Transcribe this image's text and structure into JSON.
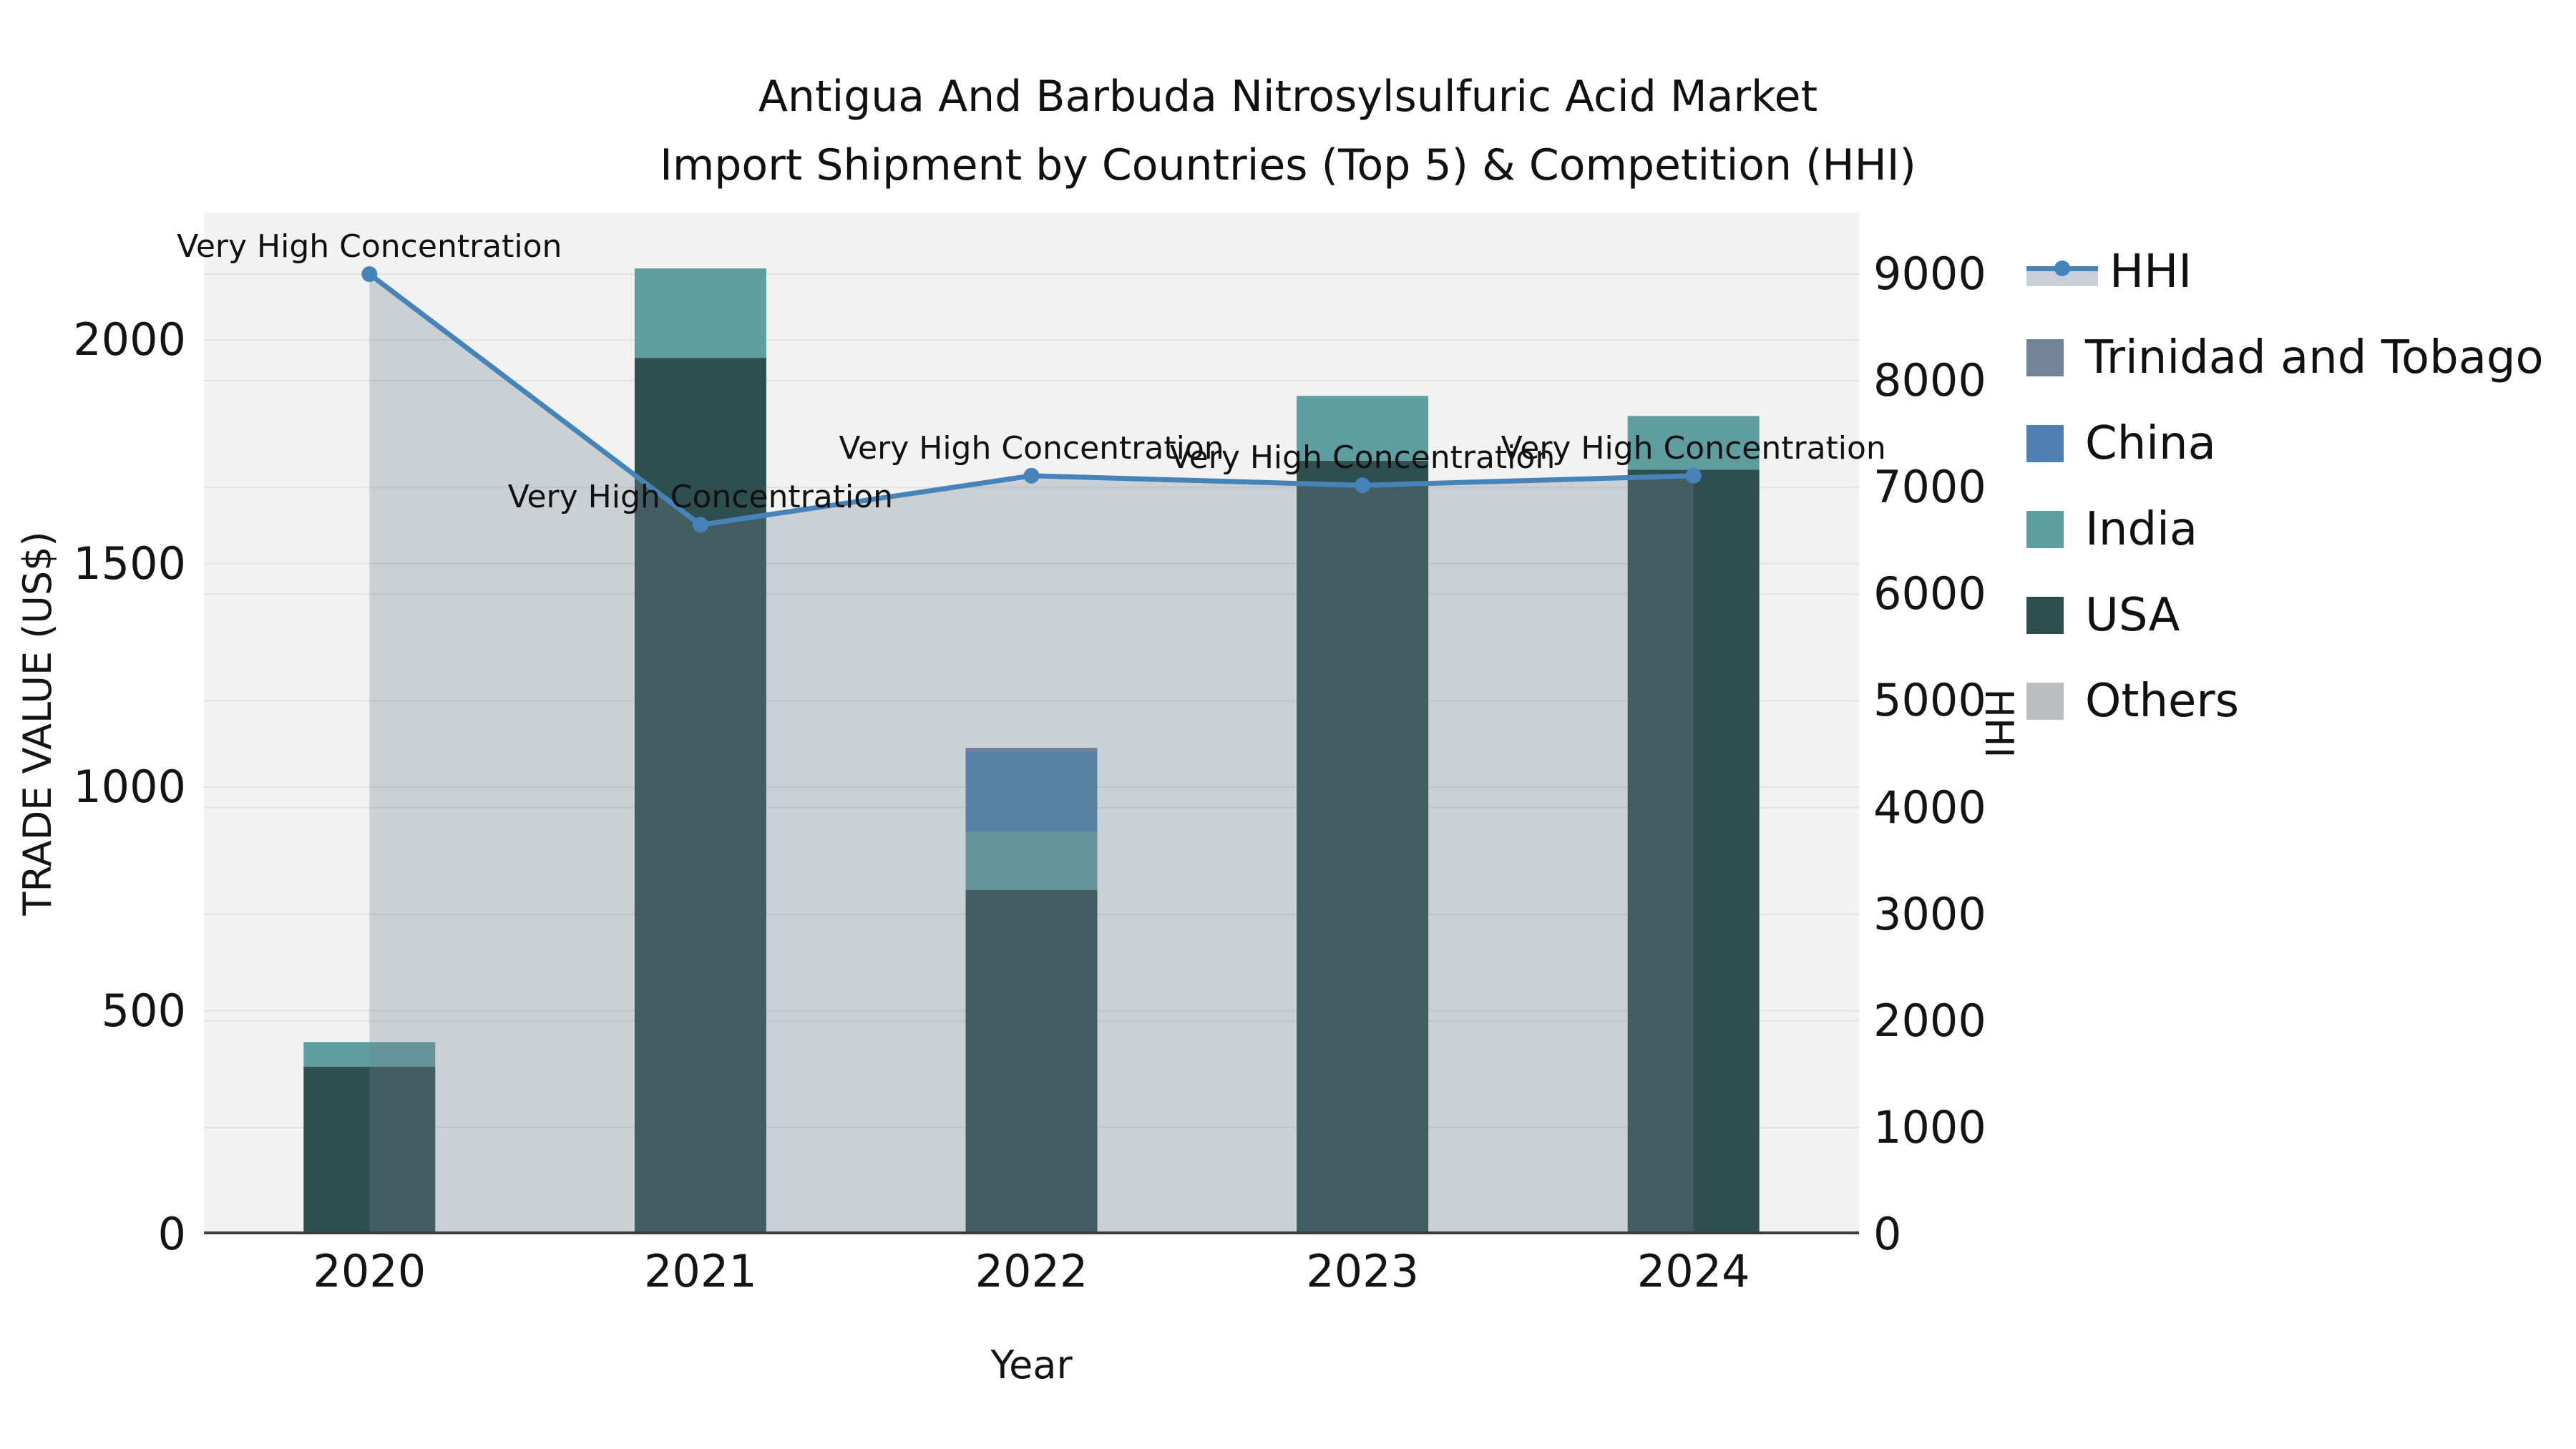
{
  "title": {
    "line1": "Antigua And Barbuda Nitrosylsulfuric Acid Market",
    "line2": "Import Shipment by Countries (Top 5) & Competition (HHI)"
  },
  "axes": {
    "x_label": "Year",
    "y_left_label": "TRADE VALUE (US$)",
    "y_right_label": "HHI",
    "y_left_ticks": [
      0,
      500,
      1000,
      1500,
      2000
    ],
    "y_right_ticks": [
      0,
      1000,
      2000,
      3000,
      4000,
      5000,
      6000,
      7000,
      8000,
      9000
    ]
  },
  "colors": {
    "figure_bg": "#ffffff",
    "plot_bg": "#f2f2f3",
    "grid": "#e1e1e1",
    "axis_line": "#3c3c3c",
    "hhi_line": "#4683b8",
    "hhi_fill": "rgba(112,128,144,0.30)",
    "usa": "#2f4f4f",
    "india": "#5f9ea0",
    "china": "#4e81b1",
    "trinidad_and_tobago": "#73849a",
    "others": "#bdbebf"
  },
  "legend": {
    "items": [
      {
        "label": "HHI",
        "type": "line",
        "color": "#4683b8",
        "band": "#c9cfd9"
      },
      {
        "label": "Trinidad and Tobago",
        "type": "patch",
        "color": "#73849a"
      },
      {
        "label": "China",
        "type": "patch",
        "color": "#4e81b1"
      },
      {
        "label": "India",
        "type": "patch",
        "color": "#5f9ea0"
      },
      {
        "label": "USA",
        "type": "patch",
        "color": "#2f4f4f"
      },
      {
        "label": "Others",
        "type": "patch",
        "color": "#bdbebf"
      }
    ]
  },
  "chart_data": {
    "type": "bar",
    "subtype": "stacked-bars-with-line-overlay",
    "title": "Antigua And Barbuda Nitrosylsulfuric Acid Market Import Shipment by Countries (Top 5) & Competition (HHI)",
    "xlabel": "Year",
    "ylabel_left": "TRADE VALUE (US$)",
    "ylabel_right": "HHI",
    "categories": [
      "2020",
      "2021",
      "2022",
      "2023",
      "2024"
    ],
    "series": [
      {
        "name": "USA",
        "color": "#2f4f4f",
        "values": [
          375,
          1960,
          770,
          1730,
          1710
        ]
      },
      {
        "name": "India",
        "color": "#5f9ea0",
        "values": [
          55,
          200,
          130,
          145,
          120
        ]
      },
      {
        "name": "China",
        "color": "#4e81b1",
        "values": [
          0,
          0,
          180,
          0,
          0
        ]
      },
      {
        "name": "Trinidad and Tobago",
        "color": "#73849a",
        "values": [
          0,
          0,
          8,
          0,
          0
        ]
      },
      {
        "name": "Others",
        "color": "#bdbebf",
        "values": [
          0,
          0,
          0,
          0,
          0
        ]
      }
    ],
    "line_series": {
      "name": "HHI",
      "axis": "right",
      "color": "#4683b8",
      "values": [
        9000,
        6650,
        7110,
        7020,
        7110
      ],
      "point_annotations": [
        "Very High Concentration",
        "Very High Concentration",
        "Very High Concentration",
        "Very High Concentration",
        "Very High Concentration"
      ]
    },
    "ylim_left": [
      0,
      2285
    ],
    "ylim_right": [
      0,
      9577
    ],
    "grid": true,
    "legend_position": "right"
  }
}
